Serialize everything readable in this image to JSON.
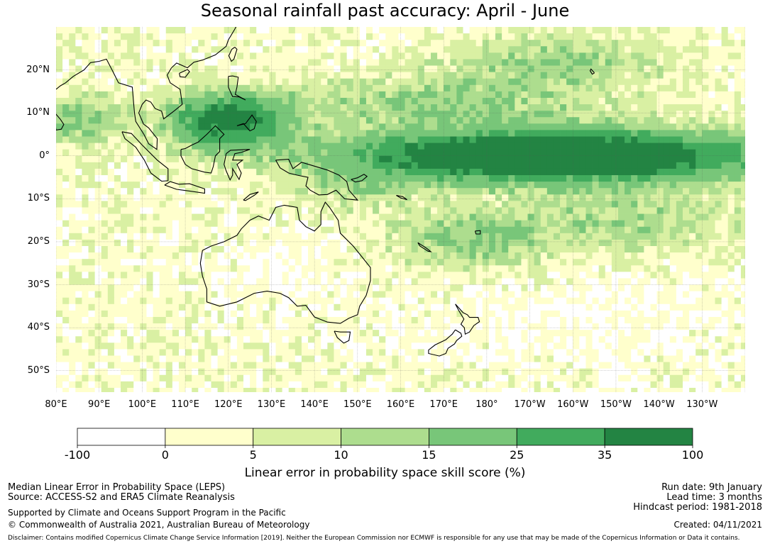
{
  "title": "Seasonal rainfall past accuracy: April - June",
  "map": {
    "lat_ticks": [
      "20°N",
      "10°N",
      "0°",
      "10°S",
      "20°S",
      "30°S",
      "40°S",
      "50°S"
    ],
    "lon_ticks": [
      "80°E",
      "90°E",
      "100°E",
      "110°E",
      "120°E",
      "130°E",
      "140°E",
      "150°E",
      "160°E",
      "170°E",
      "180°",
      "170°W",
      "160°W",
      "150°W",
      "140°W",
      "130°W"
    ],
    "extent": {
      "lon_min": 80,
      "lon_max": 240,
      "lat_min": -55,
      "lat_max": 30
    },
    "grid": true
  },
  "colorbar": {
    "ticks": [
      "-100",
      "0",
      "5",
      "10",
      "15",
      "25",
      "35",
      "100"
    ],
    "colors": [
      "#ffffff",
      "#ffffcc",
      "#d9f0a3",
      "#addd8e",
      "#78c679",
      "#41ab5d",
      "#238443"
    ],
    "label": "Linear error in probability space skill score (%)"
  },
  "footer": {
    "left_line1": "Median Linear Error in Probability Space (LEPS)",
    "left_line2": "Source: ACCESS-S2 and ERA5 Climate Reanalysis",
    "left_line3": "Supported by Climate and Oceans Support Program in the Pacific",
    "left_line4": "© Commonwealth of Australia 2021, Australian Bureau of Meteorology",
    "right_line1": "Run date: 9th January",
    "right_line2": "Lead time: 3 months",
    "right_line3": "Hindcast period: 1981-2018",
    "right_line4": "Created: 04/11/2021",
    "disclaimer": "Disclaimer: Contains modified Copernicus Climate Change Service Information [2019]. Neither the European Commission nor ECMWF is responsible for any use that may be made of the Copernicus Information or Data it contains."
  }
}
